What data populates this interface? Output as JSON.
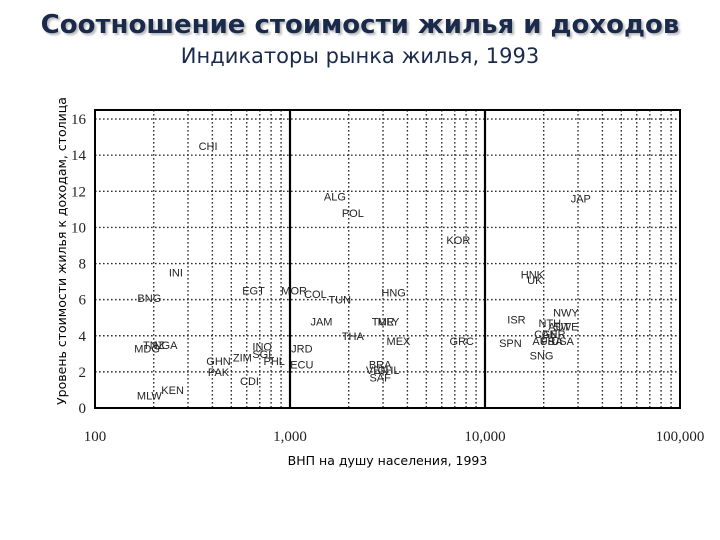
{
  "header": {
    "title": "Соотношение стоимости жилья и доходов",
    "subtitle": "Индикаторы рынка жилья, 1993"
  },
  "chart_data": {
    "type": "scatter",
    "title": "Соотношение стоимости жилья и доходов",
    "subtitle": "Индикаторы рынка жилья, 1993",
    "xlabel": "ВНП на душу населения, 1993",
    "ylabel": "Уровень стоимости жилья к доходам, столица",
    "xscale": "log",
    "xlim": [
      100,
      100000
    ],
    "ylim": [
      0,
      16.5
    ],
    "xticks": [
      100,
      1000,
      10000,
      100000
    ],
    "xtick_labels": [
      "100",
      "1,000",
      "10,000",
      "100,000"
    ],
    "yticks": [
      0,
      2,
      4,
      6,
      8,
      10,
      12,
      14,
      16
    ],
    "ytick_labels": [
      "0",
      "2",
      "4",
      "6",
      "8",
      "10",
      "12",
      "14",
      "16"
    ],
    "grid": true,
    "reference_lines_x": [
      1000,
      10000
    ],
    "points": [
      {
        "label": "CHI",
        "x": 380,
        "y": 14.5
      },
      {
        "label": "ALG",
        "x": 1700,
        "y": 11.7
      },
      {
        "label": "POL",
        "x": 2100,
        "y": 10.8
      },
      {
        "label": "JAP",
        "x": 31000,
        "y": 11.6
      },
      {
        "label": "KOR",
        "x": 7300,
        "y": 9.3
      },
      {
        "label": "INI",
        "x": 260,
        "y": 7.5
      },
      {
        "label": "HNK",
        "x": 17500,
        "y": 7.4
      },
      {
        "label": "UK",
        "x": 18000,
        "y": 7.1
      },
      {
        "label": "EGT",
        "x": 650,
        "y": 6.5
      },
      {
        "label": "MOR",
        "x": 1050,
        "y": 6.5
      },
      {
        "label": "COL",
        "x": 1350,
        "y": 6.3
      },
      {
        "label": "HNG",
        "x": 3400,
        "y": 6.4
      },
      {
        "label": "BNG",
        "x": 190,
        "y": 6.1
      },
      {
        "label": "TUN",
        "x": 1800,
        "y": 6.0
      },
      {
        "label": "NWY",
        "x": 26000,
        "y": 5.3
      },
      {
        "label": "JAM",
        "x": 1450,
        "y": 4.8
      },
      {
        "label": "TUR",
        "x": 3000,
        "y": 4.8
      },
      {
        "label": "MLY",
        "x": 3200,
        "y": 4.8
      },
      {
        "label": "ISR",
        "x": 14500,
        "y": 4.9
      },
      {
        "label": "NTH",
        "x": 21500,
        "y": 4.7
      },
      {
        "label": "AUT",
        "x": 24000,
        "y": 4.5
      },
      {
        "label": "SWE",
        "x": 26000,
        "y": 4.5
      },
      {
        "label": "CAN",
        "x": 20500,
        "y": 4.1
      },
      {
        "label": "GER",
        "x": 22500,
        "y": 4.1
      },
      {
        "label": "THA",
        "x": 2100,
        "y": 4.0
      },
      {
        "label": "MEX",
        "x": 3600,
        "y": 3.7
      },
      {
        "label": "GRC",
        "x": 7600,
        "y": 3.7
      },
      {
        "label": "SPN",
        "x": 13500,
        "y": 3.6
      },
      {
        "label": "AUS",
        "x": 20000,
        "y": 3.7
      },
      {
        "label": "FRA",
        "x": 22000,
        "y": 3.7
      },
      {
        "label": "USA",
        "x": 25000,
        "y": 3.7
      },
      {
        "label": "NGA",
        "x": 230,
        "y": 3.5
      },
      {
        "label": "TNZ",
        "x": 200,
        "y": 3.5
      },
      {
        "label": "MDG",
        "x": 185,
        "y": 3.3
      },
      {
        "label": "INO",
        "x": 720,
        "y": 3.4
      },
      {
        "label": "JRD",
        "x": 1150,
        "y": 3.3
      },
      {
        "label": "SGL",
        "x": 730,
        "y": 3.0
      },
      {
        "label": "ZIM",
        "x": 570,
        "y": 2.8
      },
      {
        "label": "PHL",
        "x": 830,
        "y": 2.6
      },
      {
        "label": "ECU",
        "x": 1150,
        "y": 2.4
      },
      {
        "label": "GHN",
        "x": 430,
        "y": 2.6
      },
      {
        "label": "SNG",
        "x": 19500,
        "y": 2.9
      },
      {
        "label": "BRA",
        "x": 2900,
        "y": 2.4
      },
      {
        "label": "VEN",
        "x": 2800,
        "y": 2.1
      },
      {
        "label": "CHL",
        "x": 3200,
        "y": 2.1
      },
      {
        "label": "PAK",
        "x": 430,
        "y": 2.0
      },
      {
        "label": "SAF",
        "x": 2900,
        "y": 1.7
      },
      {
        "label": "CDI",
        "x": 620,
        "y": 1.5
      },
      {
        "label": "KEN",
        "x": 250,
        "y": 1.0
      },
      {
        "label": "MLW",
        "x": 190,
        "y": 0.7
      }
    ]
  }
}
